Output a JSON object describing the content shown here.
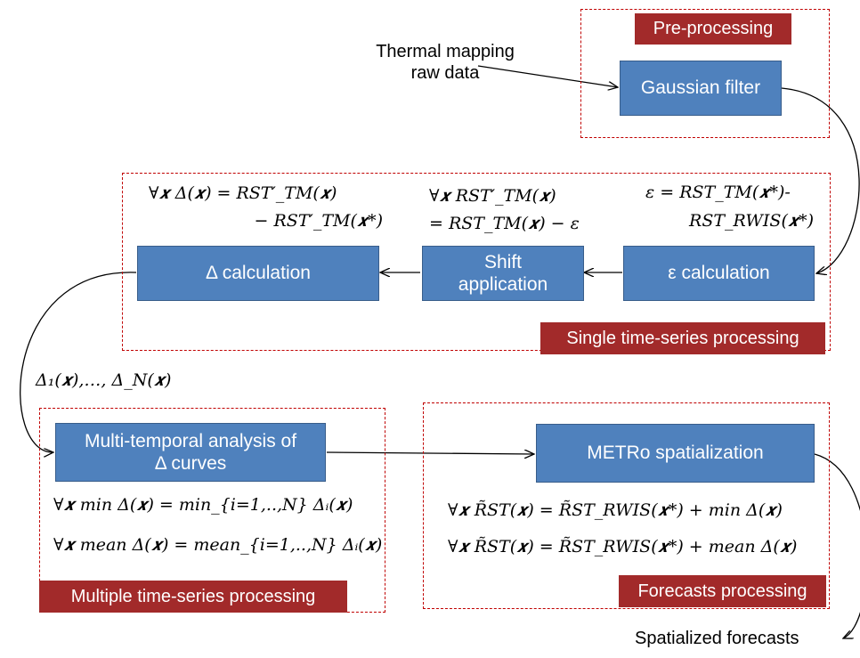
{
  "groups": {
    "preprocessing": "Pre-processing",
    "single": "Single time-series processing",
    "multiple": "Multiple time-series processing",
    "forecasts": "Forecasts processing"
  },
  "boxes": {
    "gaussian": "Gaussian filter",
    "epsilon": "ε calculation",
    "shift": "Shift\napplication",
    "delta": "Δ calculation",
    "multi": "Multi-temporal analysis of\nΔ curves",
    "metro": "METRo spatialization"
  },
  "labels": {
    "input": "Thermal mapping\nraw data",
    "delta_series": "Δ₁(𝒙),…, Δ_N(𝒙)",
    "output": "Spatialized forecasts"
  },
  "equations": {
    "delta_line1": "∀𝒙 Δ(𝒙) =  RST′_TM(𝒙)",
    "delta_line2": "−  RST′_TM(𝒙*)",
    "shift_line1": "∀𝒙 RST′_TM(𝒙)",
    "shift_line2": "= RST_TM(𝒙) − ε",
    "eps_line1": "ε = RST_TM(𝒙*)-",
    "eps_line2": "RST_RWIS(𝒙*)",
    "min_eq": "∀𝒙 min Δ(𝒙) = min_{i=1,..,N} Δᵢ(𝒙)",
    "mean_eq": "∀𝒙 mean Δ(𝒙) = mean_{i=1,..,N} Δᵢ(𝒙)",
    "forecast_min": "∀𝒙 R̃ST(𝒙) = R̃ST_RWIS(𝒙*) + min Δ(𝒙)",
    "forecast_mean": "∀𝒙 R̃ST(𝒙) = R̃ST_RWIS(𝒙*) + mean Δ(𝒙)"
  },
  "colors": {
    "box_fill": "#4f81bd",
    "tag_fill": "#a22a2a",
    "group_border": "#c00000"
  }
}
